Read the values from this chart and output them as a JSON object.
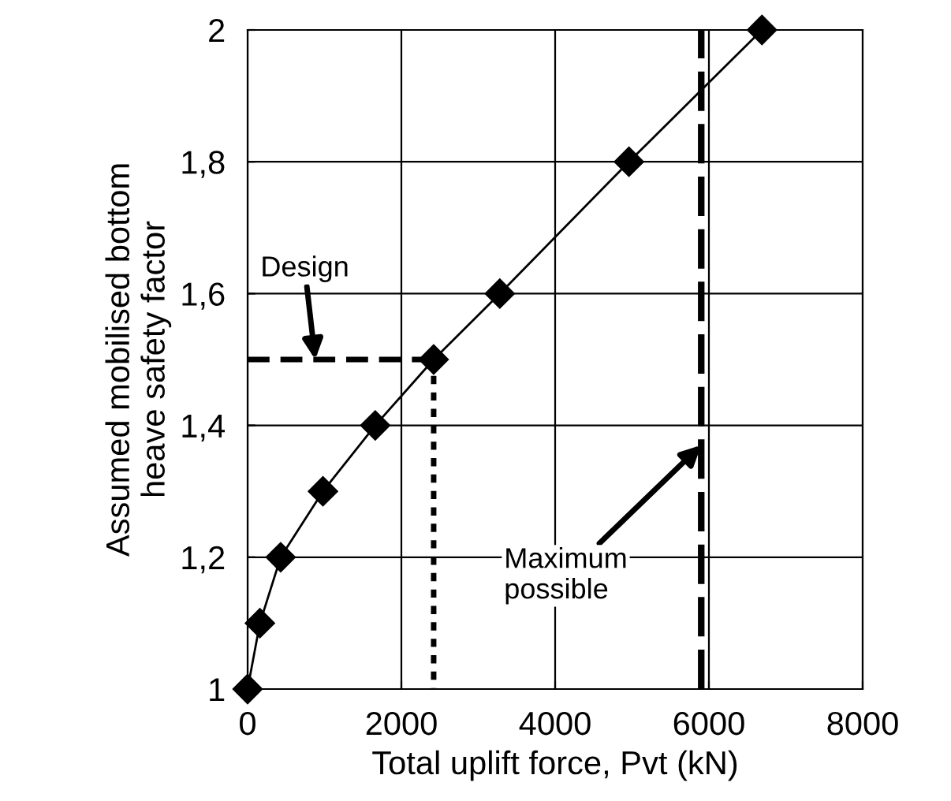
{
  "chart_data": {
    "type": "line",
    "xlabel": "Total uplift force, Pvt (kN)",
    "ylabel": "Assumed mobilised bottom\nheave safety factor",
    "series": [
      {
        "color": "#000000",
        "x": [
          0,
          160,
          430,
          980,
          1660,
          2420,
          3280,
          4960,
          6690
        ],
        "values": [
          1,
          1.1,
          1.2,
          1.3,
          1.4,
          1.5,
          1.6,
          1.8,
          2
        ],
        "marker": "diamond",
        "line_style": "solid"
      },
      {
        "color": "#000000",
        "x": [
          0,
          2420
        ],
        "values": [
          1.5,
          1.5
        ],
        "marker": "none",
        "line_style": "dashed"
      },
      {
        "color": "#000000",
        "x": [
          2420,
          2420
        ],
        "values": [
          1.5,
          1
        ],
        "marker": "none",
        "line_style": "dotted"
      }
    ],
    "xlim": [
      0,
      8000
    ],
    "xticks": [
      0,
      2000,
      4000,
      6000,
      8000
    ],
    "ylim": [
      1,
      2
    ],
    "yticks": [
      1,
      {
        "value": 1.2,
        "label": "1,2"
      },
      {
        "value": 1.4,
        "label": "1,4"
      },
      {
        "value": 1.6,
        "label": "1,6"
      },
      {
        "value": 1.8,
        "label": "1,8"
      },
      2
    ],
    "grid": true,
    "legend": false,
    "ref_lines": [
      {
        "axis": "x",
        "value": 5900,
        "color": "#000000",
        "line_style": "dashed"
      }
    ],
    "annotations": [
      {
        "text": "Design",
        "x": 880,
        "y": 1.5
      },
      {
        "text": "Maximum\npossible",
        "x": 5900,
        "y": 1.37
      }
    ]
  }
}
